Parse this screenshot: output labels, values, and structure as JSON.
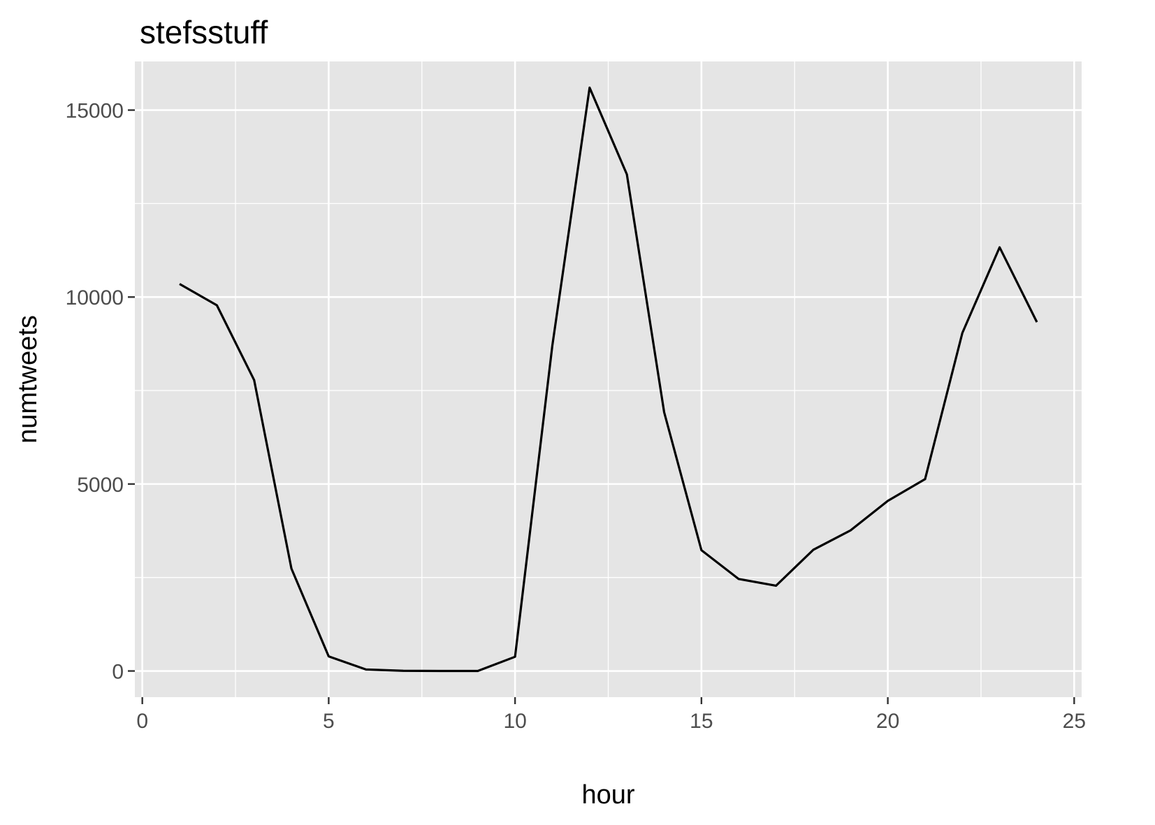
{
  "chart_data": {
    "type": "line",
    "title": "stefsstuff",
    "xlabel": "hour",
    "ylabel": "numtweets",
    "xlim": [
      -0.2,
      25.2
    ],
    "ylim": [
      -700,
      16300
    ],
    "x_ticks": [
      0,
      5,
      10,
      15,
      20,
      25
    ],
    "x_tick_labels": [
      "0",
      "5",
      "10",
      "15",
      "20",
      "25"
    ],
    "y_ticks": [
      0,
      5000,
      10000,
      15000
    ],
    "y_tick_labels": [
      "0",
      "5000",
      "10000",
      "15000"
    ],
    "x_minor_ticks": [
      2.5,
      7.5,
      12.5,
      17.5,
      22.5
    ],
    "y_minor_ticks": [
      2500,
      7500,
      12500
    ],
    "grid": true,
    "legend": "none",
    "colors": {
      "panel": "#e5e5e5",
      "grid": "#ffffff",
      "line": "#000000",
      "tick_text": "#4d4d4d",
      "tick_mark": "#333333"
    },
    "series": [
      {
        "x": [
          1,
          2,
          3,
          4,
          5,
          6,
          7,
          8,
          9,
          10,
          11,
          12,
          13,
          14,
          15,
          16,
          17,
          18,
          19,
          20,
          21,
          22,
          23,
          24
        ],
        "values": [
          10350,
          9780,
          7780,
          2740,
          390,
          40,
          5,
          0,
          0,
          380,
          8700,
          15600,
          13280,
          6920,
          3230,
          2460,
          2280,
          3240,
          3760,
          4550,
          5130,
          9040,
          11330,
          9330
        ]
      }
    ]
  }
}
